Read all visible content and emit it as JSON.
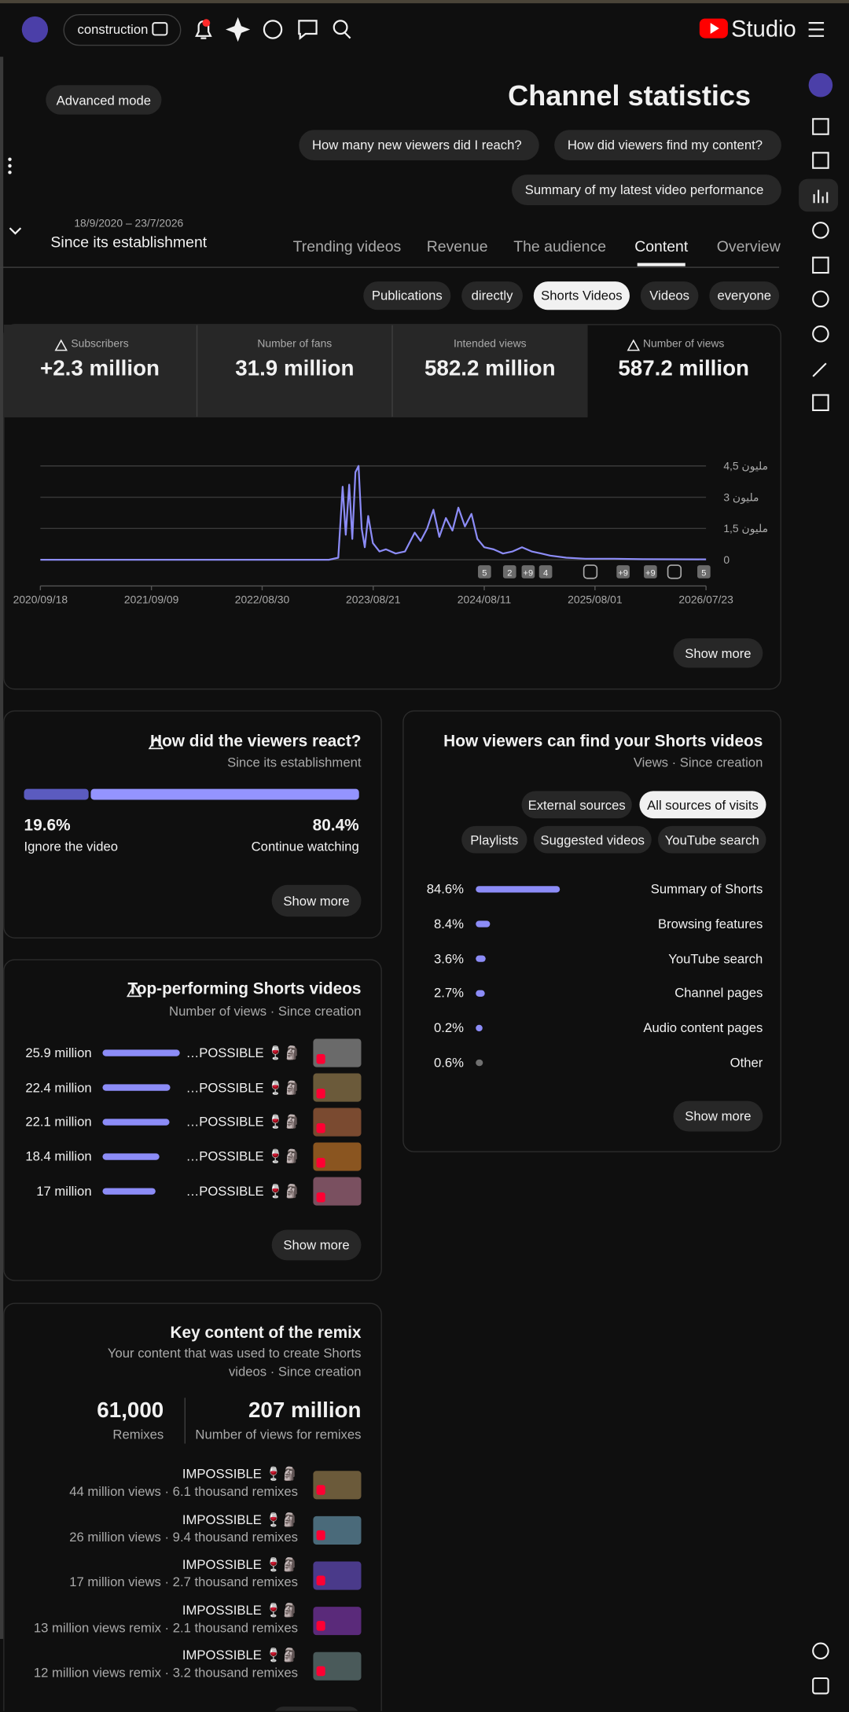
{
  "header": {
    "channel_chip": "construction",
    "logo": "Studio"
  },
  "toolbar": {
    "advanced_mode": "Advanced mode",
    "title": "Channel statistics",
    "prompts": [
      "How many new viewers did I reach?",
      "How did viewers find my content?",
      "Summary of my latest video performance"
    ]
  },
  "period": {
    "range": "18/9/2020 – 23/7/2026",
    "label": "Since its establishment"
  },
  "tabs": [
    "Trending videos",
    "Revenue",
    "The audience",
    "Content",
    "Overview"
  ],
  "filters": [
    "Publications",
    "directly",
    "Shorts Videos",
    "Videos",
    "everyone"
  ],
  "metrics": [
    {
      "label": "Subscribers",
      "value": "+2.3 million"
    },
    {
      "label": "Number of fans",
      "value": "31.9 million"
    },
    {
      "label": "Intended views",
      "value": "582.2 million"
    },
    {
      "label": "Number of views",
      "value": "587.2 million"
    }
  ],
  "chart_data": {
    "type": "line",
    "color": "#8c8cf7",
    "grid": true,
    "x": [
      "2020/09/18",
      "2023/04/01",
      "2023/05/01",
      "2023/05/15",
      "2023/05/25",
      "2023/06/05",
      "2023/06/15",
      "2023/06/25",
      "2023/07/05",
      "2023/07/15",
      "2023/07/25",
      "2023/08/05",
      "2023/08/20",
      "2023/09/10",
      "2023/10/01",
      "2023/11/01",
      "2023/12/01",
      "2024/01/01",
      "2024/01/20",
      "2024/02/10",
      "2024/03/01",
      "2024/03/20",
      "2024/04/10",
      "2024/05/01",
      "2024/05/20",
      "2024/06/10",
      "2024/07/01",
      "2024/07/20",
      "2024/08/11",
      "2024/09/10",
      "2024/10/10",
      "2024/11/10",
      "2024/12/10",
      "2025/01/10",
      "2025/02/10",
      "2025/03/10",
      "2025/05/01",
      "2025/07/01",
      "2025/10/01",
      "2026/01/01",
      "2026/07/23"
    ],
    "values": [
      0,
      0,
      0.1,
      3.5,
      1.2,
      3.6,
      1.0,
      4.2,
      4.5,
      1.5,
      0.6,
      2.1,
      0.8,
      0.4,
      0.5,
      0.3,
      0.4,
      1.3,
      0.9,
      1.5,
      2.4,
      1.1,
      2.0,
      1.4,
      2.5,
      1.6,
      2.2,
      1.0,
      0.6,
      0.5,
      0.3,
      0.4,
      0.6,
      0.4,
      0.3,
      0.2,
      0.1,
      0.05,
      0.05,
      0.03,
      0.02
    ],
    "xlim": [
      "2020/09/18",
      "2026/07/23"
    ],
    "xticks": [
      "2020/09/18",
      "2021/09/09",
      "2022/08/30",
      "2023/08/21",
      "2024/08/11",
      "2025/08/01",
      "2026/07/23"
    ],
    "ylim": [
      0,
      4.5
    ],
    "yticks": [
      0,
      {
        "value": 1.5,
        "label": "1,5 مليون"
      },
      {
        "value": 3,
        "label": "3 مليون"
      },
      {
        "value": 4.5,
        "label": "4,5 مليون"
      }
    ]
  },
  "chart_annotations": [
    "5",
    "2",
    "+9",
    "4",
    "+9",
    "+9",
    "5"
  ],
  "chart_button": "Show more",
  "reaction": {
    "title": "How did the viewers react?",
    "subtitle": "Since its establishment",
    "values": [
      19.6,
      80.4
    ],
    "value_labels": [
      "19.6%",
      "80.4%"
    ],
    "labels": [
      "Ignore the video",
      "Continue watching"
    ],
    "colors": [
      "#5b5bbf",
      "#9494ff"
    ],
    "button": "Show more"
  },
  "traffic": {
    "title": "How viewers can find your Shorts videos",
    "subtitle": "Views · Since creation",
    "chips": [
      "External sources",
      "All sources of visits",
      "Playlists",
      "Suggested videos",
      "YouTube search"
    ],
    "categories": [
      "Summary of Shorts",
      "Browsing features",
      "YouTube search",
      "Channel pages",
      "Audio content pages",
      "Other"
    ],
    "values": [
      84.6,
      8.4,
      3.6,
      2.7,
      0.2,
      0.6
    ],
    "value_labels": [
      "84.6%",
      "8.4%",
      "3.6%",
      "2.7%",
      "0.2%",
      "0.6%"
    ],
    "colors": [
      "#8c8cf7",
      "#8c8cf7",
      "#8c8cf7",
      "#8c8cf7",
      "#8c8cf7",
      "#707070"
    ],
    "button": "Show more"
  },
  "top_shorts": {
    "title": "Top-performing Shorts videos",
    "subtitle": "Number of views · Since creation",
    "values": [
      25.9,
      22.4,
      22.1,
      18.4,
      17
    ],
    "value_labels": [
      "25.9 million",
      "22.4 million",
      "22.1 million",
      "18.4 million",
      "17 million"
    ],
    "titles": [
      "…POSSIBLE 🍷🗿",
      "…POSSIBLE 🍷🗿",
      "…POSSIBLE 🍷🗿",
      "…POSSIBLE 🍷🗿",
      "…POSSIBLE 🍷🗿"
    ],
    "color": "#8c8cf7",
    "button": "Show more"
  },
  "remix": {
    "title": "Key content of the remix",
    "subtitle": "Your content that was used to create Shorts videos · Since creation",
    "stats": [
      {
        "value": "61,000",
        "label": "Remixes"
      },
      {
        "value": "207 million",
        "label": "Number of views for remixes"
      }
    ],
    "items": [
      {
        "title": "IMPOSSIBLE 🍷🗿",
        "meta": "44 million views · 6.1 thousand remixes"
      },
      {
        "title": "IMPOSSIBLE 🍷🗿",
        "meta": "26 million views · 9.4 thousand remixes"
      },
      {
        "title": "IMPOSSIBLE 🍷🗿",
        "meta": "17 million views · 2.7 thousand remixes"
      },
      {
        "title": "IMPOSSIBLE 🍷🗿",
        "meta": "13 million views remix · 2.1 thousand remixes"
      },
      {
        "title": "IMPOSSIBLE 🍷🗿",
        "meta": "12 million views remix · 3.2 thousand remixes"
      }
    ]
  }
}
